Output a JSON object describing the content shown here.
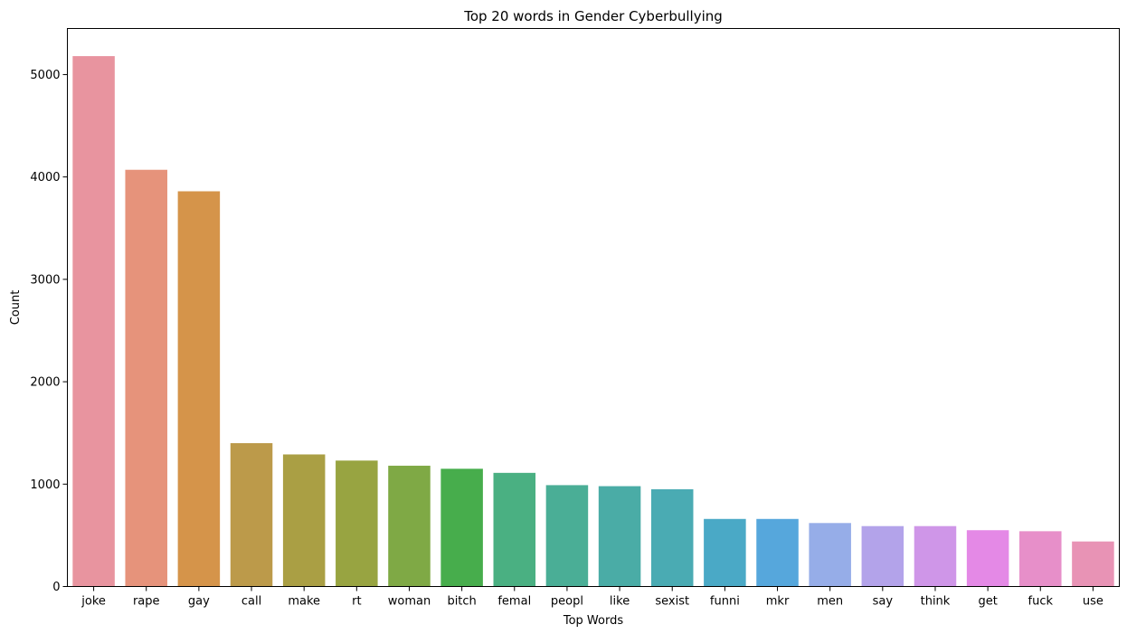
{
  "chart_data": {
    "type": "bar",
    "title": "Top 20 words in Gender Cyberbullying",
    "xlabel": "Top Words",
    "ylabel": "Count",
    "ylim": [
      0,
      5450
    ],
    "yticks": [
      0,
      1000,
      2000,
      3000,
      4000,
      5000
    ],
    "grid": false,
    "categories": [
      "joke",
      "rape",
      "gay",
      "call",
      "make",
      "rt",
      "woman",
      "bitch",
      "femal",
      "peopl",
      "like",
      "sexist",
      "funni",
      "mkr",
      "men",
      "say",
      "think",
      "get",
      "fuck",
      "use"
    ],
    "values": [
      5180,
      4070,
      3860,
      1400,
      1290,
      1230,
      1180,
      1150,
      1110,
      990,
      980,
      950,
      660,
      660,
      620,
      590,
      590,
      550,
      540,
      440
    ],
    "colors": [
      "#e8949f",
      "#e6937b",
      "#d5944a",
      "#bc9a4a",
      "#aa9f44",
      "#98a441",
      "#7fa945",
      "#47ad4c",
      "#4ab082",
      "#4aae96",
      "#4aaca6",
      "#4aabb3",
      "#4aa9c6",
      "#56a7dc",
      "#96ade8",
      "#b3a3ea",
      "#cf96e8",
      "#e489e6",
      "#e78fc9",
      "#e893b5"
    ]
  }
}
